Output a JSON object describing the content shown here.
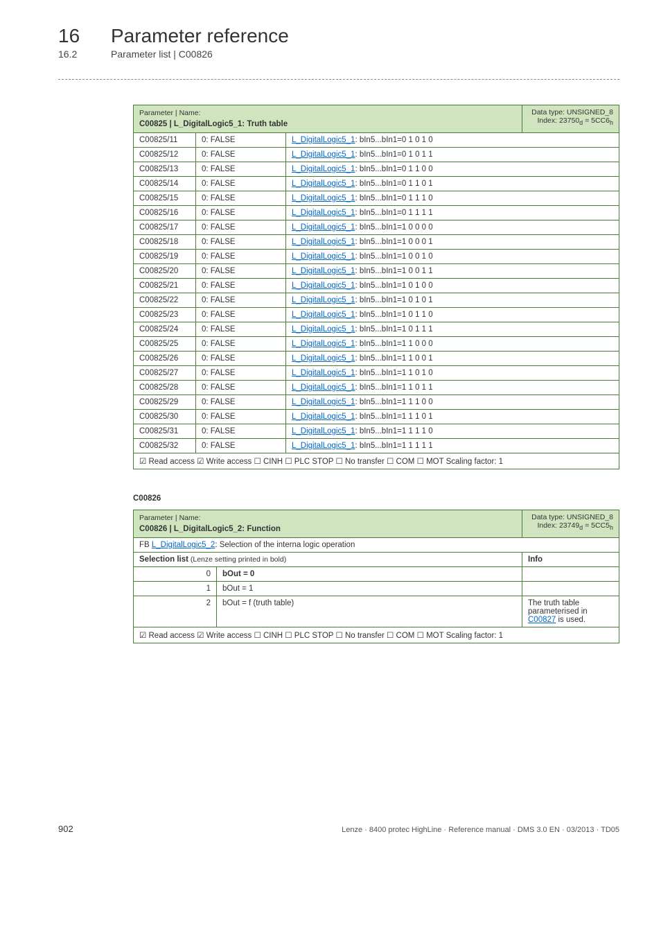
{
  "header": {
    "chapter_num": "16",
    "chapter_title": "Parameter reference",
    "section_num": "16.2",
    "section_title": "Parameter list | C00826"
  },
  "table1": {
    "hdr_left_top": "Parameter | Name:",
    "hdr_left_bold": "C00825 | L_DigitalLogic5_1: Truth table",
    "hdr_right_l1": "Data type: UNSIGNED_8",
    "hdr_right_l2a": "Index: 23750",
    "hdr_right_l2b": " = 5CC6",
    "rows": [
      {
        "c": "C00825/11",
        "v": "0: FALSE",
        "l": "L_DigitalLogic5_1",
        "t": ": bIn5...bIn1=0 1 0 1 0"
      },
      {
        "c": "C00825/12",
        "v": "0: FALSE",
        "l": "L_DigitalLogic5_1",
        "t": ": bIn5...bIn1=0 1 0 1 1"
      },
      {
        "c": "C00825/13",
        "v": "0: FALSE",
        "l": "L_DigitalLogic5_1",
        "t": ": bIn5...bIn1=0 1 1 0 0"
      },
      {
        "c": "C00825/14",
        "v": "0: FALSE",
        "l": "L_DigitalLogic5_1",
        "t": ": bIn5...bIn1=0 1 1 0 1"
      },
      {
        "c": "C00825/15",
        "v": "0: FALSE",
        "l": "L_DigitalLogic5_1",
        "t": ": bIn5...bIn1=0 1 1 1 0"
      },
      {
        "c": "C00825/16",
        "v": "0: FALSE",
        "l": "L_DigitalLogic5_1",
        "t": ": bIn5...bIn1=0 1 1 1 1"
      },
      {
        "c": "C00825/17",
        "v": "0: FALSE",
        "l": "L_DigitalLogic5_1",
        "t": ": bIn5...bIn1=1 0 0 0 0"
      },
      {
        "c": "C00825/18",
        "v": "0: FALSE",
        "l": "L_DigitalLogic5_1",
        "t": ": bIn5...bIn1=1 0 0 0 1"
      },
      {
        "c": "C00825/19",
        "v": "0: FALSE",
        "l": "L_DigitalLogic5_1",
        "t": ": bIn5...bIn1=1 0 0 1 0"
      },
      {
        "c": "C00825/20",
        "v": "0: FALSE",
        "l": "L_DigitalLogic5_1",
        "t": ": bIn5...bIn1=1 0 0 1 1"
      },
      {
        "c": "C00825/21",
        "v": "0: FALSE",
        "l": "L_DigitalLogic5_1",
        "t": ": bIn5...bIn1=1 0 1 0 0"
      },
      {
        "c": "C00825/22",
        "v": "0: FALSE",
        "l": "L_DigitalLogic5_1",
        "t": ": bIn5...bIn1=1 0 1 0 1"
      },
      {
        "c": "C00825/23",
        "v": "0: FALSE",
        "l": "L_DigitalLogic5_1",
        "t": ": bIn5...bIn1=1 0 1 1 0"
      },
      {
        "c": "C00825/24",
        "v": "0: FALSE",
        "l": "L_DigitalLogic5_1",
        "t": ": bIn5...bIn1=1 0 1 1 1"
      },
      {
        "c": "C00825/25",
        "v": "0: FALSE",
        "l": "L_DigitalLogic5_1",
        "t": ": bIn5...bIn1=1 1 0 0 0"
      },
      {
        "c": "C00825/26",
        "v": "0: FALSE",
        "l": "L_DigitalLogic5_1",
        "t": ": bIn5...bIn1=1 1 0 0 1"
      },
      {
        "c": "C00825/27",
        "v": "0: FALSE",
        "l": "L_DigitalLogic5_1",
        "t": ": bIn5...bIn1=1 1 0 1 0"
      },
      {
        "c": "C00825/28",
        "v": "0: FALSE",
        "l": "L_DigitalLogic5_1",
        "t": ": bIn5...bIn1=1 1 0 1 1"
      },
      {
        "c": "C00825/29",
        "v": "0: FALSE",
        "l": "L_DigitalLogic5_1",
        "t": ": bIn5...bIn1=1 1 1 0 0"
      },
      {
        "c": "C00825/30",
        "v": "0: FALSE",
        "l": "L_DigitalLogic5_1",
        "t": ": bIn5...bIn1=1 1 1 0 1"
      },
      {
        "c": "C00825/31",
        "v": "0: FALSE",
        "l": "L_DigitalLogic5_1",
        "t": ": bIn5...bIn1=1 1 1 1 0"
      },
      {
        "c": "C00825/32",
        "v": "0: FALSE",
        "l": "L_DigitalLogic5_1",
        "t": ": bIn5...bIn1=1 1 1 1 1"
      }
    ],
    "footer": "☑ Read access   ☑ Write access   ☐ CINH   ☐ PLC STOP   ☐ No transfer   ☐ COM   ☐ MOT    Scaling factor: 1"
  },
  "section2_code": "C00826",
  "table2": {
    "hdr_left_top": "Parameter | Name:",
    "hdr_left_bold": "C00826 | L_DigitalLogic5_2: Function",
    "hdr_right_l1": "Data type: UNSIGNED_8",
    "hdr_right_l2a": "Index: 23749",
    "hdr_right_l2b": " = 5CC5",
    "fb_prefix": "FB ",
    "fb_link": "L_DigitalLogic5_2",
    "fb_suffix": ": Selection of the interna logic operation",
    "sel_label": "Selection list",
    "sel_suffix": " (Lenze setting printed in bold)",
    "info_label": "Info",
    "rows": [
      {
        "n": "0",
        "v": "bOut = 0",
        "bold": true,
        "info": ""
      },
      {
        "n": "1",
        "v": "bOut = 1",
        "bold": false,
        "info": ""
      },
      {
        "n": "2",
        "v": "bOut = f (truth table)",
        "bold": false,
        "info_pre": "The truth table parameterised in ",
        "info_link": "C00827",
        "info_post": "  is used."
      }
    ],
    "footer": "☑ Read access   ☑ Write access   ☐ CINH   ☐ PLC STOP   ☐ No transfer   ☐ COM   ☐ MOT    Scaling factor: 1"
  },
  "footer": {
    "page": "902",
    "info": "Lenze · 8400 protec HighLine · Reference manual · DMS 3.0 EN · 03/2013 · TD05"
  },
  "colors": {
    "header_bg": "#d0e4c0",
    "border": "#4a7a3a",
    "link": "#0066cc"
  }
}
